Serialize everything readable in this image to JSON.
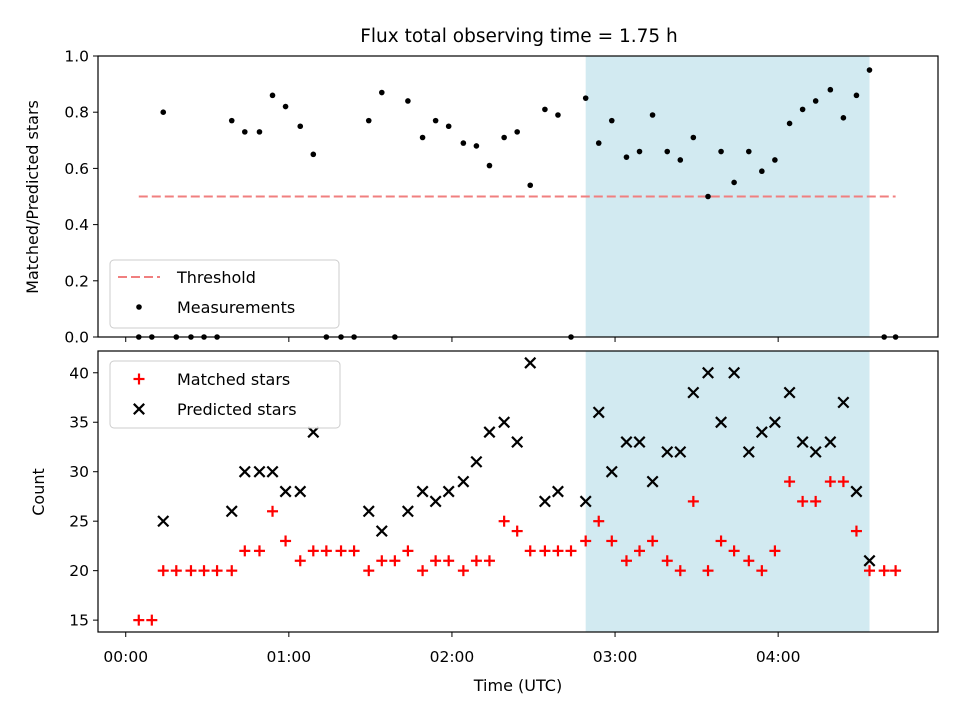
{
  "title": "Flux total observing time = 1.75 h",
  "colors": {
    "threshold": "#f07f7f",
    "measurements": "#000000",
    "matched": "#ff0000",
    "predicted": "#000000",
    "band": "#add8e6"
  },
  "chart_data": [
    {
      "type": "scatter",
      "xlabel": "",
      "ylabel": "Matched/Predicted stars",
      "x_unit": "hours UTC",
      "xlim": [
        -0.17,
        4.98
      ],
      "ylim": [
        0.0,
        1.0
      ],
      "yticks": [
        "0.0",
        "0.2",
        "0.4",
        "0.6",
        "0.8",
        "1.0"
      ],
      "shaded_band": [
        2.82,
        4.56
      ],
      "threshold": {
        "value": 0.5,
        "x_range": [
          0.08,
          4.72
        ],
        "style": "dashed"
      },
      "legend": {
        "position": "lower-left",
        "entries": [
          "Threshold",
          "Measurements"
        ]
      },
      "series": [
        {
          "name": "Measurements",
          "points": [
            [
              0.08,
              0.0
            ],
            [
              0.16,
              0.0
            ],
            [
              0.23,
              0.8
            ],
            [
              0.31,
              0.0
            ],
            [
              0.4,
              0.0
            ],
            [
              0.48,
              0.0
            ],
            [
              0.56,
              0.0
            ],
            [
              0.65,
              0.77
            ],
            [
              0.73,
              0.73
            ],
            [
              0.82,
              0.73
            ],
            [
              0.9,
              0.86
            ],
            [
              0.98,
              0.82
            ],
            [
              1.07,
              0.75
            ],
            [
              1.15,
              0.65
            ],
            [
              1.23,
              0.0
            ],
            [
              1.32,
              0.0
            ],
            [
              1.4,
              0.0
            ],
            [
              1.49,
              0.77
            ],
            [
              1.57,
              0.87
            ],
            [
              1.65,
              0.0
            ],
            [
              1.73,
              0.84
            ],
            [
              1.82,
              0.71
            ],
            [
              1.9,
              0.77
            ],
            [
              1.98,
              0.75
            ],
            [
              2.07,
              0.69
            ],
            [
              2.15,
              0.68
            ],
            [
              2.23,
              0.61
            ],
            [
              2.32,
              0.71
            ],
            [
              2.4,
              0.73
            ],
            [
              2.48,
              0.54
            ],
            [
              2.57,
              0.81
            ],
            [
              2.65,
              0.79
            ],
            [
              2.73,
              0.0
            ],
            [
              2.82,
              0.85
            ],
            [
              2.9,
              0.69
            ],
            [
              2.98,
              0.77
            ],
            [
              3.07,
              0.64
            ],
            [
              3.15,
              0.66
            ],
            [
              3.23,
              0.79
            ],
            [
              3.32,
              0.66
            ],
            [
              3.4,
              0.63
            ],
            [
              3.48,
              0.71
            ],
            [
              3.57,
              0.5
            ],
            [
              3.65,
              0.66
            ],
            [
              3.73,
              0.55
            ],
            [
              3.82,
              0.66
            ],
            [
              3.9,
              0.59
            ],
            [
              3.98,
              0.63
            ],
            [
              4.07,
              0.76
            ],
            [
              4.15,
              0.81
            ],
            [
              4.23,
              0.84
            ],
            [
              4.32,
              0.88
            ],
            [
              4.4,
              0.78
            ],
            [
              4.48,
              0.86
            ],
            [
              4.56,
              0.95
            ],
            [
              4.65,
              0.0
            ],
            [
              4.72,
              0.0
            ]
          ]
        }
      ]
    },
    {
      "type": "scatter",
      "xlabel": "Time (UTC)",
      "ylabel": "Count",
      "x_unit": "hours UTC",
      "xlim": [
        -0.17,
        4.98
      ],
      "ylim": [
        13.8,
        42.2
      ],
      "yticks": [
        "15",
        "20",
        "25",
        "30",
        "35",
        "40"
      ],
      "xticks": [
        "00:00",
        "01:00",
        "02:00",
        "03:00",
        "04:00"
      ],
      "shaded_band": [
        2.82,
        4.56
      ],
      "legend": {
        "position": "upper-left",
        "entries": [
          "Matched stars",
          "Predicted stars"
        ]
      },
      "series": [
        {
          "name": "Matched stars",
          "marker": "plus",
          "points": [
            [
              0.08,
              15
            ],
            [
              0.16,
              15
            ],
            [
              0.23,
              20
            ],
            [
              0.31,
              20
            ],
            [
              0.4,
              20
            ],
            [
              0.48,
              20
            ],
            [
              0.56,
              20
            ],
            [
              0.65,
              20
            ],
            [
              0.73,
              22
            ],
            [
              0.82,
              22
            ],
            [
              0.9,
              26
            ],
            [
              0.98,
              23
            ],
            [
              1.07,
              21
            ],
            [
              1.15,
              22
            ],
            [
              1.23,
              22
            ],
            [
              1.32,
              22
            ],
            [
              1.4,
              22
            ],
            [
              1.49,
              20
            ],
            [
              1.57,
              21
            ],
            [
              1.65,
              21
            ],
            [
              1.73,
              22
            ],
            [
              1.82,
              20
            ],
            [
              1.9,
              21
            ],
            [
              1.98,
              21
            ],
            [
              2.07,
              20
            ],
            [
              2.15,
              21
            ],
            [
              2.23,
              21
            ],
            [
              2.32,
              25
            ],
            [
              2.4,
              24
            ],
            [
              2.48,
              22
            ],
            [
              2.57,
              22
            ],
            [
              2.65,
              22
            ],
            [
              2.73,
              22
            ],
            [
              2.82,
              23
            ],
            [
              2.9,
              25
            ],
            [
              2.98,
              23
            ],
            [
              3.07,
              21
            ],
            [
              3.15,
              22
            ],
            [
              3.23,
              23
            ],
            [
              3.32,
              21
            ],
            [
              3.4,
              20
            ],
            [
              3.48,
              27
            ],
            [
              3.57,
              20
            ],
            [
              3.65,
              23
            ],
            [
              3.73,
              22
            ],
            [
              3.82,
              21
            ],
            [
              3.9,
              20
            ],
            [
              3.98,
              22
            ],
            [
              4.07,
              29
            ],
            [
              4.15,
              27
            ],
            [
              4.23,
              27
            ],
            [
              4.32,
              29
            ],
            [
              4.4,
              29
            ],
            [
              4.48,
              24
            ],
            [
              4.56,
              20
            ],
            [
              4.65,
              20
            ],
            [
              4.72,
              20
            ]
          ]
        },
        {
          "name": "Predicted stars",
          "marker": "x",
          "points": [
            [
              0.23,
              25
            ],
            [
              0.65,
              26
            ],
            [
              0.73,
              30
            ],
            [
              0.82,
              30
            ],
            [
              0.9,
              30
            ],
            [
              0.98,
              28
            ],
            [
              1.07,
              28
            ],
            [
              1.15,
              34
            ],
            [
              1.49,
              26
            ],
            [
              1.57,
              24
            ],
            [
              1.73,
              26
            ],
            [
              1.82,
              28
            ],
            [
              1.9,
              27
            ],
            [
              1.98,
              28
            ],
            [
              2.07,
              29
            ],
            [
              2.15,
              31
            ],
            [
              2.23,
              34
            ],
            [
              2.32,
              35
            ],
            [
              2.4,
              33
            ],
            [
              2.48,
              41
            ],
            [
              2.57,
              27
            ],
            [
              2.65,
              28
            ],
            [
              2.82,
              27
            ],
            [
              2.9,
              36
            ],
            [
              2.98,
              30
            ],
            [
              3.07,
              33
            ],
            [
              3.15,
              33
            ],
            [
              3.23,
              29
            ],
            [
              3.32,
              32
            ],
            [
              3.4,
              32
            ],
            [
              3.48,
              38
            ],
            [
              3.57,
              40
            ],
            [
              3.65,
              35
            ],
            [
              3.73,
              40
            ],
            [
              3.82,
              32
            ],
            [
              3.9,
              34
            ],
            [
              3.98,
              35
            ],
            [
              4.07,
              38
            ],
            [
              4.15,
              33
            ],
            [
              4.23,
              32
            ],
            [
              4.32,
              33
            ],
            [
              4.4,
              37
            ],
            [
              4.48,
              28
            ],
            [
              4.56,
              21
            ]
          ]
        }
      ]
    }
  ]
}
